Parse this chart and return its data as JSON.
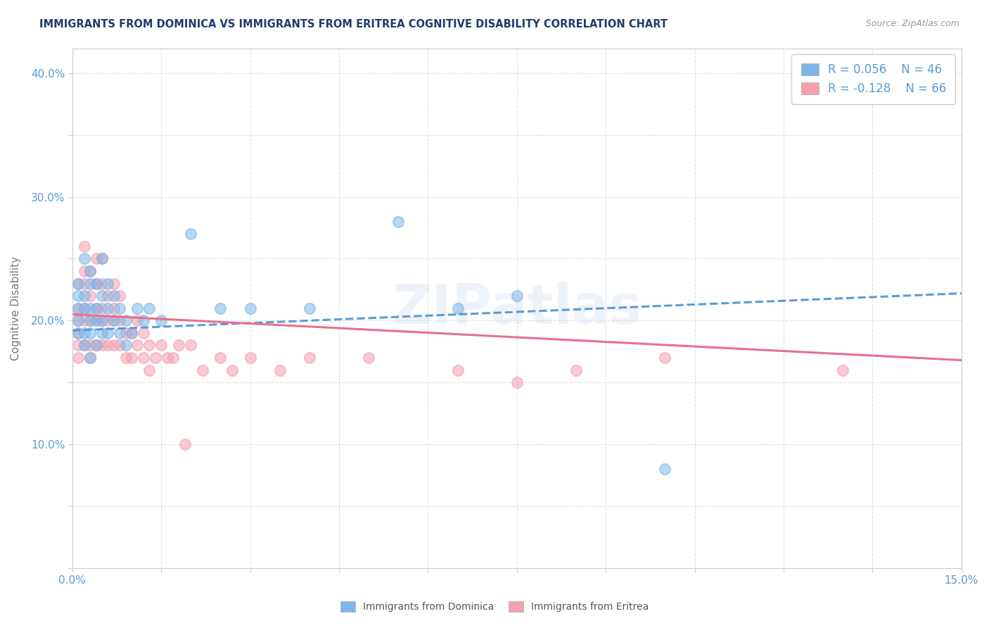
{
  "title": "IMMIGRANTS FROM DOMINICA VS IMMIGRANTS FROM ERITREA COGNITIVE DISABILITY CORRELATION CHART",
  "source": "Source: ZipAtlas.com",
  "xlabel": "",
  "ylabel": "Cognitive Disability",
  "xlim": [
    0.0,
    0.15
  ],
  "ylim": [
    0.0,
    0.42
  ],
  "xticks": [
    0.0,
    0.015,
    0.03,
    0.045,
    0.06,
    0.075,
    0.09,
    0.105,
    0.12,
    0.135,
    0.15
  ],
  "xticklabels": [
    "0.0%",
    "",
    "",
    "",
    "",
    "",
    "",
    "",
    "",
    "",
    "15.0%"
  ],
  "yticks": [
    0.0,
    0.05,
    0.1,
    0.15,
    0.2,
    0.25,
    0.3,
    0.35,
    0.4
  ],
  "yticklabels": [
    "",
    "",
    "10.0%",
    "",
    "20.0%",
    "",
    "30.0%",
    "",
    "40.0%"
  ],
  "series1_label": "Immigrants from Dominica",
  "series1_R": 0.056,
  "series1_N": 46,
  "series1_color": "#7EB6E8",
  "series1_line_color": "#5B9BD5",
  "series2_label": "Immigrants from Eritrea",
  "series2_R": -0.128,
  "series2_N": 66,
  "series2_color": "#F4A0B0",
  "series2_line_color": "#E87090",
  "watermark": "ZIPatlas",
  "background_color": "#ffffff",
  "grid_color": "#dddddd",
  "title_color": "#1F3A6E",
  "axis_label_color": "#5B9BD5",
  "legend_R_color": "#5B9BD5",
  "series1_x": [
    0.001,
    0.001,
    0.001,
    0.001,
    0.001,
    0.002,
    0.002,
    0.002,
    0.002,
    0.002,
    0.003,
    0.003,
    0.003,
    0.003,
    0.003,
    0.003,
    0.004,
    0.004,
    0.004,
    0.004,
    0.005,
    0.005,
    0.005,
    0.005,
    0.006,
    0.006,
    0.006,
    0.007,
    0.007,
    0.008,
    0.008,
    0.009,
    0.009,
    0.01,
    0.011,
    0.012,
    0.013,
    0.015,
    0.02,
    0.025,
    0.03,
    0.04,
    0.055,
    0.065,
    0.075,
    0.1
  ],
  "series1_y": [
    0.19,
    0.2,
    0.21,
    0.22,
    0.23,
    0.18,
    0.19,
    0.21,
    0.22,
    0.25,
    0.17,
    0.19,
    0.2,
    0.21,
    0.23,
    0.24,
    0.18,
    0.2,
    0.21,
    0.23,
    0.19,
    0.2,
    0.22,
    0.25,
    0.19,
    0.21,
    0.23,
    0.2,
    0.22,
    0.19,
    0.21,
    0.18,
    0.2,
    0.19,
    0.21,
    0.2,
    0.21,
    0.2,
    0.27,
    0.21,
    0.21,
    0.21,
    0.28,
    0.21,
    0.22,
    0.08
  ],
  "series2_x": [
    0.001,
    0.001,
    0.001,
    0.001,
    0.001,
    0.001,
    0.002,
    0.002,
    0.002,
    0.002,
    0.002,
    0.002,
    0.003,
    0.003,
    0.003,
    0.003,
    0.003,
    0.004,
    0.004,
    0.004,
    0.004,
    0.004,
    0.005,
    0.005,
    0.005,
    0.005,
    0.005,
    0.006,
    0.006,
    0.006,
    0.007,
    0.007,
    0.007,
    0.007,
    0.008,
    0.008,
    0.008,
    0.009,
    0.009,
    0.01,
    0.01,
    0.011,
    0.011,
    0.012,
    0.012,
    0.013,
    0.013,
    0.014,
    0.015,
    0.016,
    0.017,
    0.018,
    0.019,
    0.02,
    0.022,
    0.025,
    0.027,
    0.03,
    0.035,
    0.04,
    0.05,
    0.065,
    0.075,
    0.085,
    0.1,
    0.13
  ],
  "series2_y": [
    0.17,
    0.18,
    0.19,
    0.2,
    0.21,
    0.23,
    0.18,
    0.2,
    0.21,
    0.23,
    0.24,
    0.26,
    0.17,
    0.18,
    0.2,
    0.22,
    0.24,
    0.18,
    0.2,
    0.21,
    0.23,
    0.25,
    0.18,
    0.2,
    0.21,
    0.23,
    0.25,
    0.18,
    0.2,
    0.22,
    0.18,
    0.2,
    0.21,
    0.23,
    0.18,
    0.2,
    0.22,
    0.17,
    0.19,
    0.17,
    0.19,
    0.18,
    0.2,
    0.17,
    0.19,
    0.16,
    0.18,
    0.17,
    0.18,
    0.17,
    0.17,
    0.18,
    0.1,
    0.18,
    0.16,
    0.17,
    0.16,
    0.17,
    0.16,
    0.17,
    0.17,
    0.16,
    0.15,
    0.16,
    0.17,
    0.16
  ],
  "trend1_x0": 0.0,
  "trend1_y0": 0.192,
  "trend1_x1": 0.15,
  "trend1_y1": 0.222,
  "trend2_x0": 0.0,
  "trend2_y0": 0.205,
  "trend2_x1": 0.15,
  "trend2_y1": 0.168
}
